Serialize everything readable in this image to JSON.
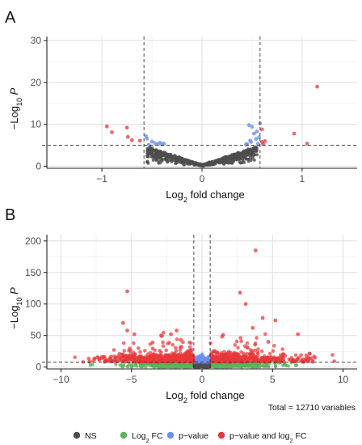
{
  "chart_data": [
    {
      "panel": "A",
      "type": "scatter",
      "xlabel": "Log2 fold change",
      "ylabel": "−Log10 P",
      "xlim": [
        -1.55,
        1.55
      ],
      "ylim": [
        -0.5,
        31
      ],
      "xticks": [
        -1,
        0,
        1
      ],
      "yticks": [
        0,
        10,
        20,
        30
      ],
      "fc_cutoff": 0.58,
      "p_cutoff": 5,
      "grid": true,
      "envelope": {
        "slope": 8.2,
        "xmax": 0.55,
        "count": 700
      },
      "points": {
        "NS": [
          [
            -0.08,
            0.6
          ],
          [
            0.1,
            0.9
          ],
          [
            -0.3,
            2.3
          ],
          [
            0.3,
            2.4
          ],
          [
            -0.45,
            3.4
          ],
          [
            0.46,
            3.6
          ],
          [
            0.52,
            4.2
          ],
          [
            -0.52,
            4.1
          ],
          [
            0.2,
            1.3
          ],
          [
            -0.2,
            1.5
          ],
          [
            0.4,
            2.9
          ],
          [
            -0.38,
            3.0
          ]
        ],
        "p-value": [
          [
            -0.56,
            7.2
          ],
          [
            -0.5,
            5.9
          ],
          [
            -0.47,
            5.5
          ],
          [
            -0.44,
            5.3
          ],
          [
            -0.42,
            5.6
          ],
          [
            -0.4,
            5.2
          ],
          [
            -0.38,
            5.4
          ],
          [
            -0.55,
            6.6
          ],
          [
            -0.53,
            5.1
          ],
          [
            0.45,
            5.3
          ],
          [
            0.48,
            6.1
          ],
          [
            0.5,
            9.4
          ],
          [
            0.52,
            7.8
          ],
          [
            0.54,
            6.5
          ],
          [
            0.55,
            8.3
          ],
          [
            0.57,
            6.9
          ],
          [
            0.56,
            5.4
          ],
          [
            0.49,
            5.8
          ],
          [
            0.47,
            9.8
          ],
          [
            0.44,
            5.2
          ],
          [
            0.58,
            10.2
          ]
        ],
        "p-value and log2 FC": [
          [
            -0.95,
            9.5
          ],
          [
            -0.9,
            8.1
          ],
          [
            -0.75,
            9.2
          ],
          [
            -0.74,
            7.0
          ],
          [
            -0.7,
            6.2
          ],
          [
            -0.62,
            6.1
          ],
          [
            0.6,
            5.8
          ],
          [
            0.6,
            8.8
          ],
          [
            0.61,
            5.3
          ],
          [
            0.63,
            6.0
          ],
          [
            0.92,
            7.8
          ],
          [
            1.05,
            5.4
          ],
          [
            1.15,
            19.0
          ]
        ]
      }
    },
    {
      "panel": "B",
      "type": "scatter",
      "xlabel": "Log2 fold change",
      "ylabel": "−Log10 P",
      "xlim": [
        -11,
        11
      ],
      "ylim": [
        -3,
        210
      ],
      "xticks": [
        -10,
        -5,
        0,
        5,
        10
      ],
      "yticks": [
        0,
        50,
        100,
        150,
        200
      ],
      "fc_cutoff": 0.58,
      "p_cutoff": 8,
      "grid": true,
      "caption": "Total = 12710 variables",
      "notable_points": [
        [
          3.8,
          185
        ],
        [
          -5.3,
          120
        ],
        [
          2.7,
          118
        ],
        [
          3.1,
          100
        ],
        [
          4.3,
          78
        ],
        [
          5.2,
          74
        ],
        [
          -5.6,
          70
        ],
        [
          3.6,
          62
        ],
        [
          -1.8,
          58
        ],
        [
          -5.3,
          58
        ],
        [
          -2.2,
          52
        ],
        [
          6.8,
          52
        ],
        [
          -4.8,
          52
        ],
        [
          -2.9,
          50
        ],
        [
          1.5,
          51
        ],
        [
          -3.5,
          39
        ],
        [
          4.7,
          40
        ],
        [
          -1.5,
          43
        ]
      ],
      "bulk": {
        "red_count": 900,
        "red_x_spread": 2.8,
        "red_y_scale": 11,
        "blue_count": 120,
        "green_count": 700
      }
    }
  ],
  "legend": {
    "items": [
      {
        "label": "NS",
        "color": "#4d4d4d"
      },
      {
        "label": "Log2 FC",
        "color": "#5ab45a"
      },
      {
        "label": "p−value",
        "color": "#6b8ff0"
      },
      {
        "label": "p−value and log2 FC",
        "color": "#e8373a"
      }
    ]
  },
  "colors": {
    "NS": "#4d4d4d",
    "fc": "#5ab45a",
    "pval": "#6b8ff0",
    "both": "#e8373a"
  }
}
